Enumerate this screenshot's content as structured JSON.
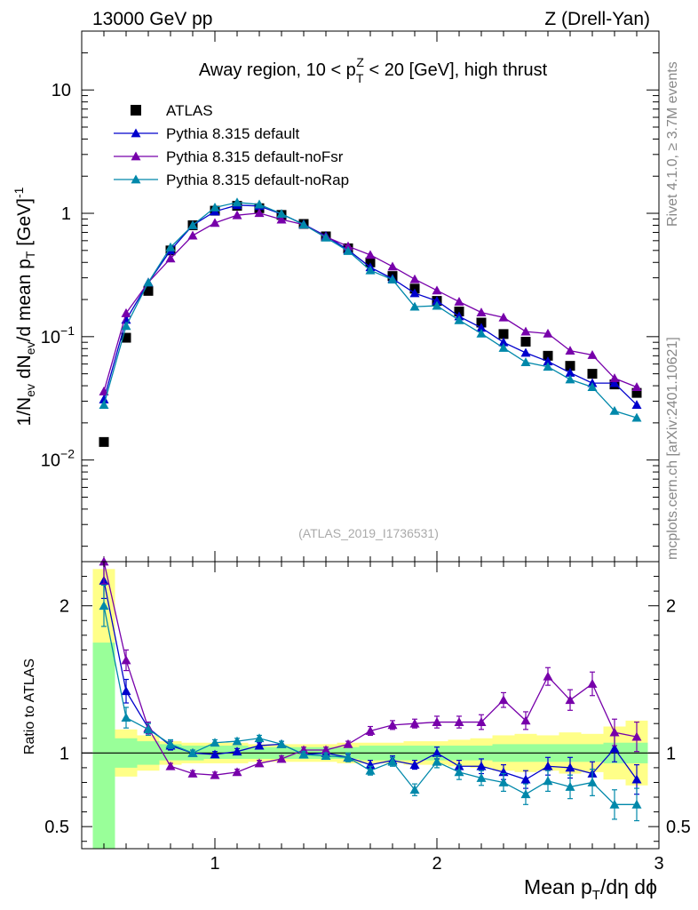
{
  "header": {
    "left": "13000 GeV pp",
    "right": "Z (Drell-Yan)",
    "title": "Away region, 10 < p",
    "title_sup": "Z",
    "title_sub": "T",
    "title_end": " < 20 [GeV], high thrust"
  },
  "side_labels": {
    "rivet": "Rivet 4.1.0, ≥ 3.7M events",
    "mcplots": "mcplots.cern.ch [arXiv:2401.10621]"
  },
  "analysis_label": "(ATLAS_2019_I1736531)",
  "ylabel_main": "1/N_ev dN_ev/d mean p_T [GeV]^-1",
  "ylabel_ratio": "Ratio to ATLAS",
  "xlabel": "Mean p_T/dη dφ",
  "colors": {
    "data": "#000000",
    "default": "#0000cc",
    "noFsr": "#7700aa",
    "noRap": "#0088aa",
    "band_green": "#99ff99",
    "band_yellow": "#ffff88"
  },
  "chart_data": {
    "type": "scatter",
    "x": [
      0.5,
      0.6,
      0.7,
      0.8,
      0.9,
      1.0,
      1.1,
      1.2,
      1.3,
      1.4,
      1.5,
      1.6,
      1.7,
      1.8,
      1.9,
      2.0,
      2.1,
      2.2,
      2.3,
      2.4,
      2.5,
      2.6,
      2.7,
      2.8,
      2.9
    ],
    "xlim": [
      0.4,
      3.0
    ],
    "x_ticks": [
      1,
      2,
      3
    ],
    "x_tick_labels": [
      "1",
      "2",
      "3"
    ],
    "main": {
      "yscale": "log",
      "ylim": [
        0.0015,
        30
      ],
      "y_ticks": [
        0.01,
        0.1,
        1,
        10
      ],
      "y_tick_labels": [
        "10^-2",
        "10^-1",
        "1",
        "10"
      ],
      "series": [
        {
          "name": "ATLAS",
          "key": "data",
          "marker": "square",
          "values": [
            0.014,
            0.098,
            0.235,
            0.5,
            0.8,
            1.05,
            1.15,
            1.1,
            0.97,
            0.82,
            0.65,
            0.52,
            0.4,
            0.31,
            0.245,
            0.195,
            0.16,
            0.13,
            0.105,
            0.091,
            0.07,
            0.058,
            0.05,
            0.041,
            0.035
          ]
        },
        {
          "name": "Pythia 8.315 default",
          "key": "default",
          "marker": "triangle",
          "values": [
            0.031,
            0.137,
            0.275,
            0.5,
            0.8,
            1.035,
            1.165,
            1.145,
            0.985,
            0.815,
            0.655,
            0.505,
            0.365,
            0.295,
            0.225,
            0.195,
            0.146,
            0.118,
            0.09,
            0.074,
            0.063,
            0.051,
            0.042,
            0.042,
            0.028
          ]
        },
        {
          "name": "Pythia 8.315 default-noFsr",
          "key": "noFsr",
          "marker": "triangle",
          "values": [
            0.036,
            0.155,
            0.275,
            0.43,
            0.66,
            0.835,
            0.965,
            1.005,
            0.89,
            0.81,
            0.645,
            0.54,
            0.46,
            0.37,
            0.292,
            0.237,
            0.192,
            0.157,
            0.143,
            0.11,
            0.106,
            0.077,
            0.071,
            0.046,
            0.039
          ]
        },
        {
          "name": "Pythia 8.315 default-noRap",
          "key": "noRap",
          "marker": "triangle",
          "values": [
            0.028,
            0.122,
            0.275,
            0.53,
            0.8,
            1.115,
            1.225,
            1.18,
            0.99,
            0.81,
            0.635,
            0.495,
            0.345,
            0.29,
            0.175,
            0.178,
            0.136,
            0.106,
            0.081,
            0.062,
            0.057,
            0.045,
            0.039,
            0.025,
            0.022
          ]
        }
      ]
    },
    "ratio": {
      "ylim": [
        0.35,
        2.3
      ],
      "y_ticks": [
        0.5,
        1,
        2
      ],
      "y_tick_labels": [
        "0.5",
        "1",
        "2"
      ],
      "band_green": [
        [
          0.2,
          1.75
        ],
        [
          0.9,
          1.1
        ],
        [
          0.92,
          1.08
        ],
        [
          0.95,
          1.06
        ],
        [
          0.95,
          1.05
        ],
        [
          0.96,
          1.05
        ],
        [
          0.96,
          1.05
        ],
        [
          0.96,
          1.04
        ],
        [
          0.96,
          1.04
        ],
        [
          0.96,
          1.04
        ],
        [
          0.96,
          1.04
        ],
        [
          0.96,
          1.04
        ],
        [
          0.95,
          1.05
        ],
        [
          0.95,
          1.05
        ],
        [
          0.95,
          1.05
        ],
        [
          0.95,
          1.05
        ],
        [
          0.95,
          1.05
        ],
        [
          0.95,
          1.05
        ],
        [
          0.94,
          1.06
        ],
        [
          0.94,
          1.06
        ],
        [
          0.94,
          1.06
        ],
        [
          0.94,
          1.06
        ],
        [
          0.94,
          1.06
        ],
        [
          0.93,
          1.07
        ],
        [
          0.93,
          1.07
        ]
      ],
      "band_yellow": [
        [
          0.2,
          2.25
        ],
        [
          0.84,
          1.16
        ],
        [
          0.88,
          1.12
        ],
        [
          0.92,
          1.08
        ],
        [
          0.93,
          1.07
        ],
        [
          0.93,
          1.07
        ],
        [
          0.93,
          1.07
        ],
        [
          0.94,
          1.06
        ],
        [
          0.94,
          1.06
        ],
        [
          0.94,
          1.06
        ],
        [
          0.94,
          1.06
        ],
        [
          0.93,
          1.07
        ],
        [
          0.93,
          1.07
        ],
        [
          0.93,
          1.07
        ],
        [
          0.92,
          1.08
        ],
        [
          0.92,
          1.08
        ],
        [
          0.91,
          1.09
        ],
        [
          0.9,
          1.1
        ],
        [
          0.88,
          1.12
        ],
        [
          0.87,
          1.13
        ],
        [
          0.88,
          1.12
        ],
        [
          0.86,
          1.14
        ],
        [
          0.87,
          1.13
        ],
        [
          0.82,
          1.18
        ],
        [
          0.78,
          1.22
        ]
      ],
      "series": [
        {
          "key": "default",
          "values": [
            2.17,
            1.42,
            1.17,
            1.05,
            1.0,
            0.99,
            1.01,
            1.05,
            1.06,
            0.99,
            1.0,
            0.97,
            0.92,
            0.95,
            0.92,
            1.0,
            0.91,
            0.91,
            0.87,
            0.82,
            0.91,
            0.9,
            0.86,
            1.03,
            0.82
          ],
          "errors": [
            0.12,
            0.08,
            0.04,
            0.03,
            0.02,
            0.02,
            0.02,
            0.02,
            0.02,
            0.02,
            0.02,
            0.02,
            0.03,
            0.03,
            0.03,
            0.04,
            0.04,
            0.05,
            0.05,
            0.06,
            0.06,
            0.07,
            0.08,
            0.09,
            0.1
          ]
        },
        {
          "key": "noFsr",
          "values": [
            2.3,
            1.63,
            1.17,
            0.91,
            0.86,
            0.85,
            0.87,
            0.93,
            0.96,
            1.02,
            1.02,
            1.06,
            1.15,
            1.19,
            1.2,
            1.21,
            1.21,
            1.21,
            1.36,
            1.22,
            1.52,
            1.36,
            1.47,
            1.14,
            1.11
          ],
          "errors": [
            0.15,
            0.07,
            0.04,
            0.02,
            0.02,
            0.02,
            0.02,
            0.02,
            0.02,
            0.02,
            0.02,
            0.02,
            0.03,
            0.03,
            0.03,
            0.04,
            0.04,
            0.05,
            0.05,
            0.06,
            0.06,
            0.07,
            0.08,
            0.09,
            0.1
          ]
        },
        {
          "key": "noRap",
          "values": [
            2.0,
            1.24,
            1.16,
            1.06,
            1.0,
            1.07,
            1.08,
            1.1,
            1.06,
            0.99,
            0.98,
            0.97,
            0.88,
            0.94,
            0.75,
            0.94,
            0.87,
            0.83,
            0.8,
            0.72,
            0.81,
            0.77,
            0.8,
            0.65,
            0.65
          ],
          "errors": [
            0.14,
            0.07,
            0.04,
            0.03,
            0.02,
            0.02,
            0.02,
            0.02,
            0.02,
            0.02,
            0.02,
            0.03,
            0.03,
            0.03,
            0.04,
            0.04,
            0.05,
            0.05,
            0.06,
            0.07,
            0.07,
            0.08,
            0.09,
            0.1,
            0.11
          ]
        }
      ]
    }
  }
}
